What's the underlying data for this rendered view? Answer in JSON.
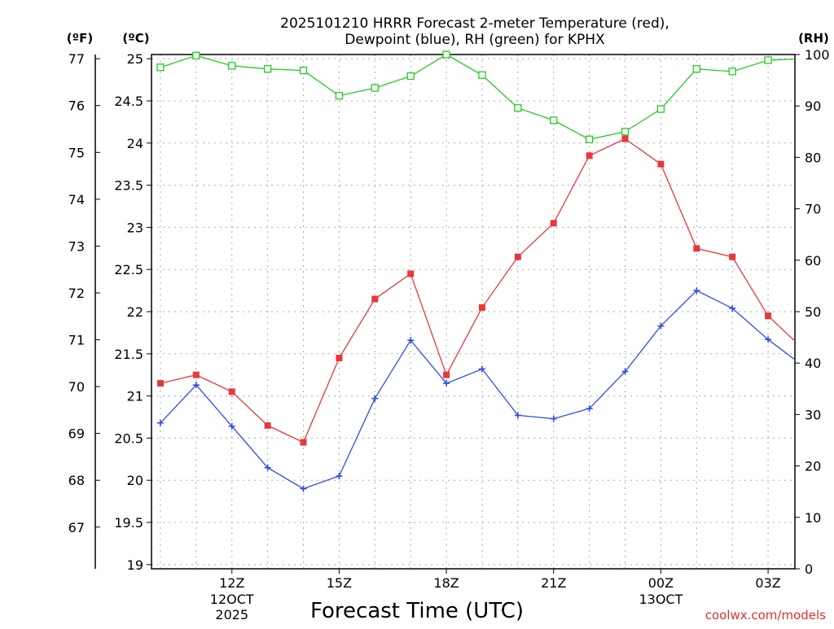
{
  "chart_data": {
    "type": "line",
    "title": "2025101210 HRRR Forecast 2-meter Temperature (red),",
    "subtitle": "Dewpoint (blue), RH (green) for KPHX",
    "xlabel": "Forecast Time (UTC)",
    "credit": "coolwx.com/models",
    "units": {
      "left_outer": "(ºF)",
      "left_inner": "(ºC)",
      "right": "(RH)"
    },
    "colors": {
      "temperature": "#e8383a",
      "dewpoint": "#2f4de0",
      "rh": "#22cc22",
      "grid": "#aaaaaa",
      "credit": "#e03030"
    },
    "x": [
      10,
      11,
      12,
      13,
      14,
      15,
      16,
      17,
      18,
      19,
      20,
      21,
      22,
      23,
      24,
      25,
      26,
      27,
      28
    ],
    "x_range": [
      9.75,
      27.75
    ],
    "x_ticks": [
      {
        "x": 12,
        "label": "12Z",
        "sub1": "12OCT",
        "sub2": "2025"
      },
      {
        "x": 15,
        "label": "15Z"
      },
      {
        "x": 18,
        "label": "18Z"
      },
      {
        "x": 21,
        "label": "21Z"
      },
      {
        "x": 24,
        "label": "00Z",
        "sub1": "13OCT"
      },
      {
        "x": 27,
        "label": "03Z"
      }
    ],
    "y_celsius_range": [
      18.95,
      25.05
    ],
    "y_celsius_ticks": [
      "19",
      "19.5",
      "20",
      "20.5",
      "21",
      "21.5",
      "22",
      "22.5",
      "23",
      "23.5",
      "24",
      "24.5",
      "25"
    ],
    "y_fahrenheit_ticks": [
      "67",
      "68",
      "69",
      "70",
      "71",
      "72",
      "73",
      "74",
      "75",
      "76",
      "77"
    ],
    "y_rh_range": [
      0,
      100
    ],
    "y_rh_ticks": [
      "0",
      "10",
      "20",
      "30",
      "40",
      "50",
      "60",
      "70",
      "80",
      "90",
      "100"
    ],
    "series": [
      {
        "name": "Temperature",
        "unit": "C",
        "values": [
          21.15,
          21.25,
          21.05,
          20.65,
          20.45,
          21.45,
          22.15,
          22.45,
          21.25,
          22.05,
          22.65,
          23.05,
          23.85,
          24.05,
          23.75,
          22.75,
          22.65,
          21.95,
          21.55
        ]
      },
      {
        "name": "Dewpoint",
        "unit": "C",
        "values": [
          20.68,
          21.13,
          20.64,
          20.15,
          19.9,
          20.05,
          20.97,
          21.66,
          21.15,
          21.32,
          20.77,
          20.73,
          20.85,
          21.29,
          21.83,
          22.25,
          22.04,
          21.67,
          21.35
        ]
      },
      {
        "name": "RH",
        "unit": "%",
        "values": [
          97.5,
          99.8,
          97.8,
          97.2,
          96.9,
          92.0,
          93.5,
          95.8,
          100.0,
          96.0,
          89.6,
          87.2,
          83.5,
          85.0,
          89.4,
          97.2,
          96.7,
          98.9,
          99.2
        ]
      }
    ]
  }
}
